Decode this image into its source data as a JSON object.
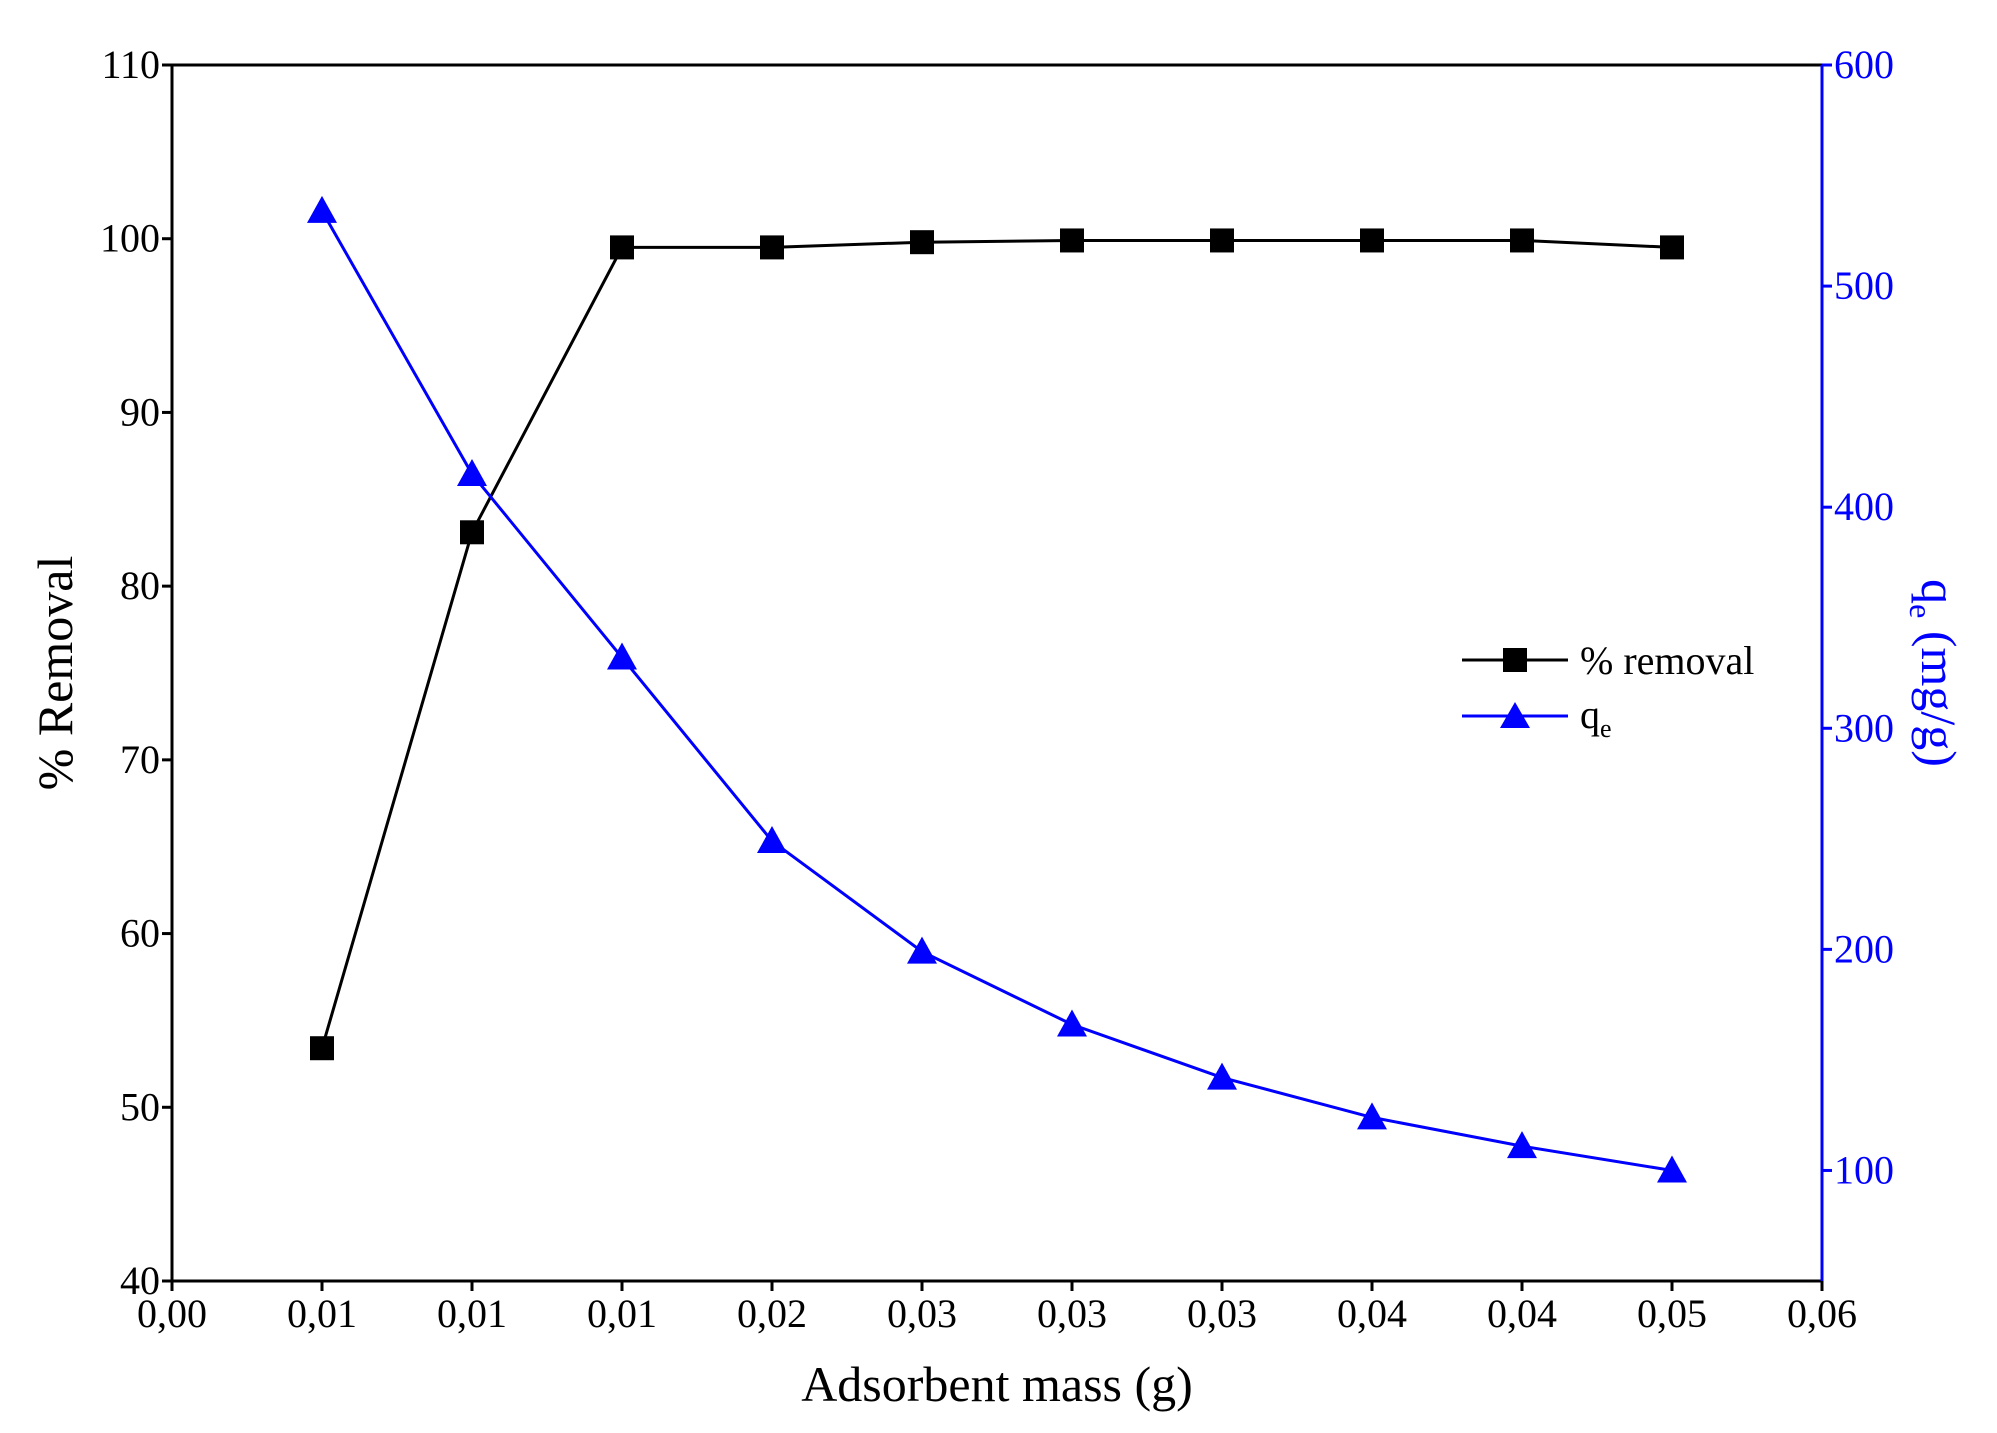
{
  "chart_data": {
    "type": "line",
    "title": "",
    "xlabel": "Adsorbent mass (g)",
    "ylabel": "% Removal",
    "y2label": {
      "main": "q",
      "sub": "e",
      "rest": " (mg/g)"
    },
    "x_tick_labels": [
      "0,00",
      "0,01",
      "0,01",
      "0,01",
      "0,02",
      "0,03",
      "0,03",
      "0,03",
      "0,04",
      "0,04",
      "0,05",
      "0,06"
    ],
    "y_ticks": [
      40,
      50,
      60,
      70,
      80,
      90,
      100,
      110
    ],
    "y2_ticks": [
      100,
      200,
      300,
      400,
      500,
      600
    ],
    "xlim": [
      0,
      0.055
    ],
    "ylim": [
      40,
      110
    ],
    "y2lim": [
      50,
      600
    ],
    "x": [
      0.005,
      0.01,
      0.015,
      0.02,
      0.025,
      0.03,
      0.035,
      0.04,
      0.045,
      0.05
    ],
    "series": [
      {
        "name": "% removal",
        "axis": "left",
        "marker": "square",
        "color": "#000000",
        "values": [
          53.4,
          83.1,
          99.5,
          99.5,
          99.8,
          99.9,
          99.9,
          99.9,
          99.9,
          99.5
        ]
      },
      {
        "name": "q",
        "name_sub": "e",
        "axis": "right",
        "marker": "triangle",
        "color": "#0000ff",
        "values": [
          534,
          415,
          332,
          249,
          199,
          166,
          142,
          124,
          111,
          100
        ]
      }
    ],
    "legend": "center-right",
    "grid": false
  }
}
